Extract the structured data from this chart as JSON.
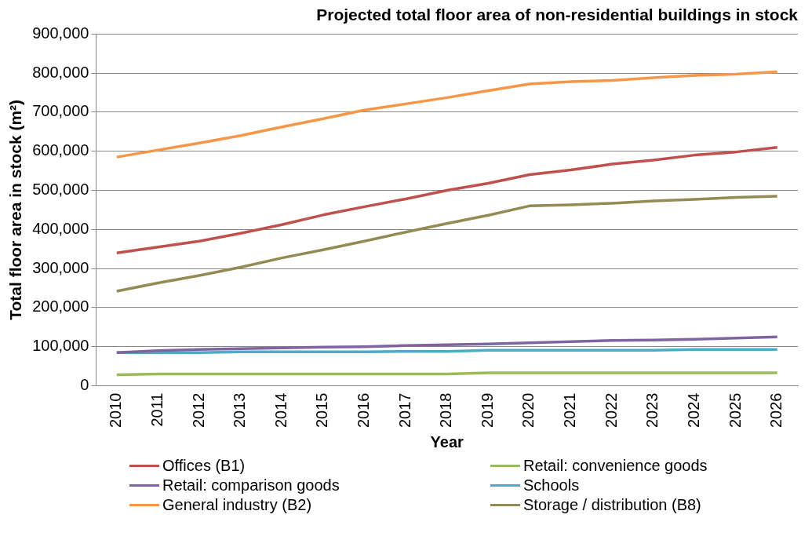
{
  "chart_data": {
    "type": "line",
    "title": "Projected total floor area of non-residential buildings in stock",
    "xlabel": "Year",
    "ylabel": "Total floor area in stock (m²)",
    "categories": [
      "2010",
      "2011",
      "2012",
      "2013",
      "2014",
      "2015",
      "2016",
      "2017",
      "2018",
      "2019",
      "2020",
      "2021",
      "2022",
      "2023",
      "2024",
      "2025",
      "2026"
    ],
    "series": [
      {
        "name": "Offices (B1)",
        "color": "#c0504d",
        "values": [
          340000,
          355000,
          370000,
          390000,
          412000,
          437000,
          458000,
          478000,
          500000,
          518000,
          540000,
          552000,
          567000,
          577000,
          590000,
          598000,
          610000
        ]
      },
      {
        "name": "Retail: convenience goods",
        "color": "#9bbb59",
        "values": [
          28000,
          30000,
          30000,
          30000,
          30000,
          30000,
          30000,
          30000,
          30000,
          33000,
          33000,
          33000,
          33000,
          33000,
          33000,
          33000,
          33000
        ]
      },
      {
        "name": "Retail: comparison goods",
        "color": "#8064a2",
        "values": [
          85000,
          90000,
          93000,
          95000,
          97000,
          99000,
          100000,
          103000,
          105000,
          107000,
          110000,
          113000,
          116000,
          117000,
          119000,
          122000,
          125000
        ]
      },
      {
        "name": "Schools",
        "color": "#4bacc6",
        "values": [
          85000,
          85000,
          85000,
          87000,
          87000,
          87000,
          87000,
          88000,
          88000,
          91000,
          91000,
          91000,
          91000,
          91000,
          93000,
          93000,
          93000
        ]
      },
      {
        "name": "General industry (B2)",
        "color": "#f79646",
        "values": [
          585000,
          603000,
          621000,
          640000,
          662000,
          683000,
          705000,
          721000,
          737000,
          755000,
          772000,
          778000,
          781000,
          788000,
          794000,
          797000,
          803000
        ]
      },
      {
        "name": "Storage / distribution (B8)",
        "color": "#948a54",
        "values": [
          242000,
          263000,
          282000,
          303000,
          327000,
          348000,
          370000,
          393000,
          415000,
          436000,
          460000,
          463000,
          467000,
          473000,
          477000,
          482000,
          485000
        ]
      }
    ],
    "ylim": [
      0,
      900000
    ],
    "yticks": [
      {
        "value": 0,
        "label": "0"
      },
      {
        "value": 100000,
        "label": "100,000"
      },
      {
        "value": 200000,
        "label": "200,000"
      },
      {
        "value": 300000,
        "label": "300,000"
      },
      {
        "value": 400000,
        "label": "400,000"
      },
      {
        "value": 500000,
        "label": "500,000"
      },
      {
        "value": 600000,
        "label": "600,000"
      },
      {
        "value": 700000,
        "label": "700,000"
      },
      {
        "value": 800000,
        "label": "800,000"
      },
      {
        "value": 900000,
        "label": "900,000"
      }
    ],
    "grid": "y",
    "legend": "bottom",
    "marker": "none",
    "line_style": "solid"
  }
}
